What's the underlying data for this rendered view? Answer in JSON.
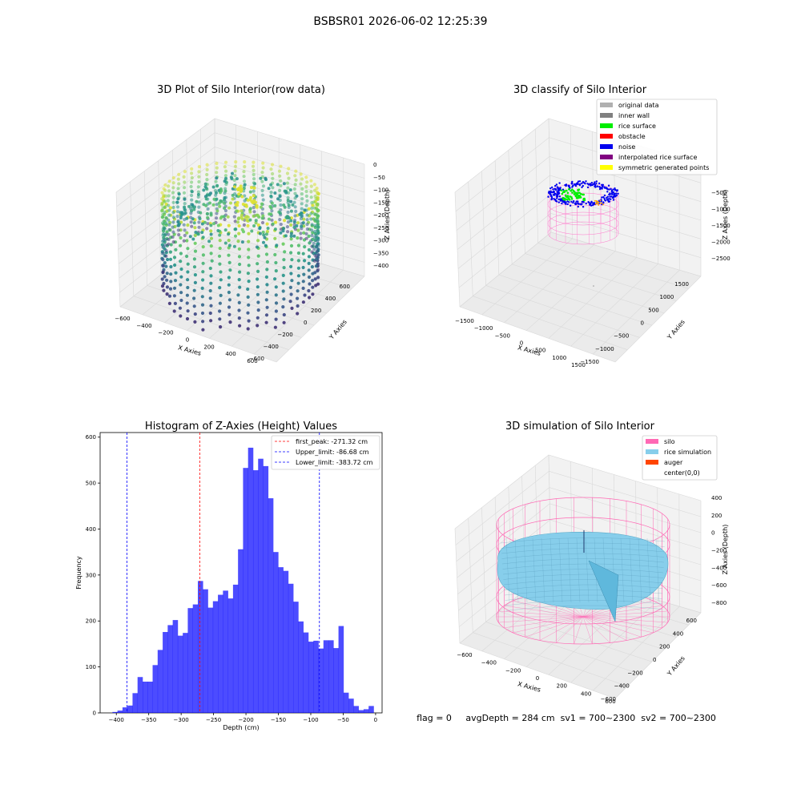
{
  "suptitle": "BSBSR01 2026-06-02 12:25:39",
  "status_line": "flag = 0     avgDepth = 284 cm  sv1 = 700~2300  sv2 = 700~2300",
  "chart_data": [
    {
      "type": "scatter3d",
      "title": "3D Plot of Silo Interior(row data)",
      "xlabel": "X Axies",
      "ylabel": "Y Axies",
      "zlabel": "Z Axies (Depth)",
      "x_ticks": [
        -600,
        -400,
        -200,
        0,
        200,
        400,
        600
      ],
      "y_ticks": [
        -600,
        -400,
        -200,
        0,
        200,
        400,
        600
      ],
      "z_ticks": [
        0,
        -50,
        -100,
        -150,
        -200,
        -250,
        -300,
        -350,
        -400
      ],
      "colormap": "viridis",
      "grid": true
    },
    {
      "type": "scatter3d",
      "title": "3D classify of Silo Interior",
      "xlabel": "X Axies",
      "ylabel": "Y Axies",
      "zlabel": "Z Axies (Depth)",
      "x_ticks": [
        -1500,
        -1000,
        -500,
        0,
        500,
        1000,
        1500
      ],
      "y_ticks": [
        -1500,
        -1000,
        -500,
        0,
        500,
        1000,
        1500
      ],
      "z_ticks": [
        -500,
        -1000,
        -1500,
        -2000,
        -2500
      ],
      "legend_position": "upper-right",
      "legend": [
        {
          "label": "original data",
          "color": "#b0b0b0"
        },
        {
          "label": "inner wall",
          "color": "#808080"
        },
        {
          "label": "rice surface",
          "color": "#00ee00"
        },
        {
          "label": "obstacle",
          "color": "#ff0000"
        },
        {
          "label": "noise",
          "color": "#0000ee"
        },
        {
          "label": "interpolated rice surface",
          "color": "#800080"
        },
        {
          "label": "symmetric generated points",
          "color": "#ffff00"
        }
      ],
      "grid": true
    },
    {
      "type": "bar",
      "title": "Histogram of Z-Axies (Height) Values",
      "xlabel": "Depth (cm)",
      "ylabel": "Frequency",
      "xlim": [
        -425,
        10
      ],
      "ylim": [
        0,
        610
      ],
      "x_ticks": [
        -400,
        -350,
        -300,
        -250,
        -200,
        -150,
        -100,
        -50,
        0
      ],
      "y_ticks": [
        0,
        100,
        200,
        300,
        400,
        500,
        600
      ],
      "bin_width": 7.75,
      "bin_start": -406,
      "values": [
        2,
        5,
        12,
        16,
        43,
        78,
        68,
        68,
        104,
        137,
        176,
        191,
        202,
        168,
        174,
        228,
        236,
        287,
        269,
        229,
        243,
        257,
        266,
        249,
        279,
        356,
        533,
        577,
        528,
        553,
        537,
        467,
        350,
        317,
        309,
        281,
        242,
        199,
        175,
        155,
        157,
        140,
        158,
        158,
        141,
        189,
        44,
        31,
        15,
        6,
        8,
        15
      ],
      "bar_color": "#0000ff",
      "bar_opacity": 0.7,
      "lines": [
        {
          "label": "first_peak: -271.32 cm",
          "x": -271.32,
          "color": "#ff0000"
        },
        {
          "label": "Upper_limit: -86.68 cm",
          "x": -86.68,
          "color": "#0000ff"
        },
        {
          "label": "Lower_limit: -383.72 cm",
          "x": -383.72,
          "color": "#0000ff"
        }
      ],
      "legend_position": "upper-right"
    },
    {
      "type": "surface3d",
      "title": "3D simulation of Silo Interior",
      "xlabel": "X Axies",
      "ylabel": "Y Axies",
      "zlabel": "Z Axies (Depth)",
      "x_ticks": [
        -600,
        -400,
        -200,
        0,
        200,
        400,
        600
      ],
      "y_ticks": [
        -600,
        -400,
        -200,
        0,
        200,
        400,
        600
      ],
      "z_ticks": [
        400,
        200,
        0,
        -200,
        -400,
        -600,
        -800
      ],
      "legend_position": "upper-right",
      "legend": [
        {
          "label": "silo",
          "color": "#ff69b4"
        },
        {
          "label": "rice simulation",
          "color": "#87ceeb"
        },
        {
          "label": "auger",
          "color": "#ff4500"
        },
        {
          "label": "center(0,0)",
          "color": ""
        }
      ],
      "grid": true
    }
  ]
}
